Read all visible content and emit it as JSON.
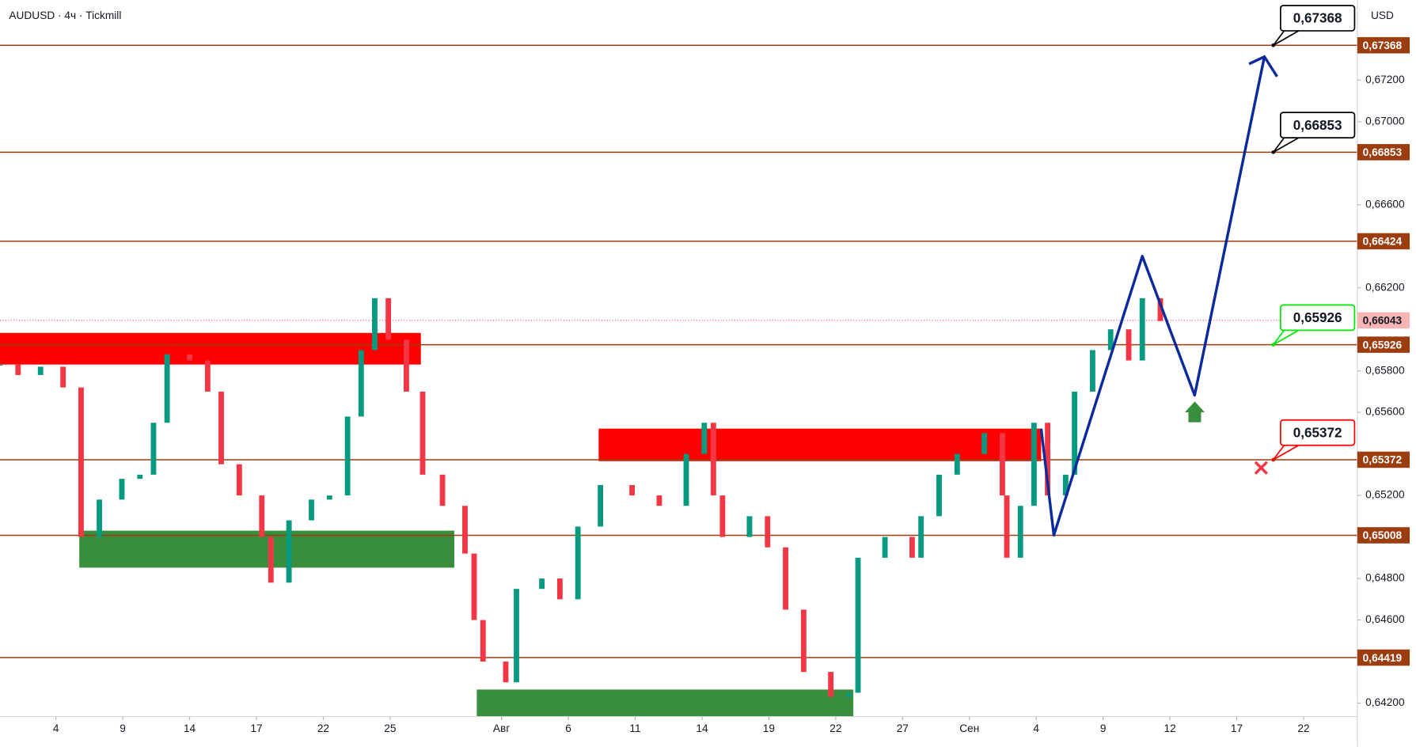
{
  "chart_data": {
    "type": "candlestick",
    "title": "AUDUSD · 4ч · Tickmill",
    "currency": "USD",
    "up_color": "#089981",
    "down_color": "#f23645",
    "level_color": "#9c3d0f",
    "grid": false,
    "x": [
      -2.51,
      -1.7,
      -0.69,
      0.32,
      1.13,
      1.95,
      2.96,
      3.77,
      4.38,
      4.99,
      6.0,
      6.81,
      7.42,
      8.23,
      9.24,
      9.65,
      10.46,
      11.47,
      12.28,
      13.09,
      13.7,
      14.31,
      14.92,
      15.73,
      16.46,
      17.35,
      18.36,
      18.77,
      19.17,
      20.19,
      20.67,
      21.81,
      22.62,
      23.43,
      24.44,
      25.86,
      27.08,
      28.29,
      29.1,
      29.51,
      29.92,
      31.13,
      31.94,
      32.75,
      33.56,
      34.78,
      35.59,
      36.0,
      37.21,
      38.43,
      38.83,
      39.64,
      40.45,
      41.67,
      42.48,
      42.68,
      43.29,
      43.9,
      44.51,
      45.32,
      45.72,
      46.53,
      47.34,
      48.15,
      48.76,
      49.57
    ],
    "close": [
      0.6583,
      0.6578,
      0.6582,
      0.6572,
      0.65,
      0.6518,
      0.6528,
      0.653,
      0.6555,
      0.6588,
      0.6585,
      0.657,
      0.6535,
      0.652,
      0.65,
      0.6478,
      0.6508,
      0.6518,
      0.652,
      0.6558,
      0.659,
      0.6615,
      0.6595,
      0.657,
      0.653,
      0.6515,
      0.6492,
      0.646,
      0.644,
      0.643,
      0.6475,
      0.648,
      0.647,
      0.6505,
      0.6525,
      0.652,
      0.6515,
      0.654,
      0.6555,
      0.652,
      0.65,
      0.651,
      0.6495,
      0.6465,
      0.6435,
      0.6423,
      0.6425,
      0.649,
      0.65,
      0.649,
      0.651,
      0.653,
      0.654,
      0.655,
      0.652,
      0.649,
      0.6515,
      0.6555,
      0.652,
      0.653,
      0.657,
      0.659,
      0.66,
      0.6585,
      0.6615,
      0.6604
    ],
    "xlim": [
      -2.51,
      58.41
    ],
    "xticks": [
      {
        "value": 0,
        "label": "4"
      },
      {
        "value": 3,
        "label": "9"
      },
      {
        "value": 6,
        "label": "14"
      },
      {
        "value": 9,
        "label": "17"
      },
      {
        "value": 12,
        "label": "22"
      },
      {
        "value": 15,
        "label": "25"
      },
      {
        "value": 20,
        "label": "Авг"
      },
      {
        "value": 23,
        "label": "6"
      },
      {
        "value": 26,
        "label": "11"
      },
      {
        "value": 29,
        "label": "14"
      },
      {
        "value": 32,
        "label": "19"
      },
      {
        "value": 35,
        "label": "22"
      },
      {
        "value": 38,
        "label": "27"
      },
      {
        "value": 41,
        "label": "Сен"
      },
      {
        "value": 44,
        "label": "4"
      },
      {
        "value": 47,
        "label": "9"
      },
      {
        "value": 50,
        "label": "12"
      },
      {
        "value": 53,
        "label": "17"
      },
      {
        "value": 56,
        "label": "22"
      }
    ],
    "ylim": [
      0.64135,
      0.67583
    ],
    "yticks": [
      {
        "value": 0.672,
        "label": "0,67200"
      },
      {
        "value": 0.67,
        "label": "0,67000"
      },
      {
        "value": 0.666,
        "label": "0,66600"
      },
      {
        "value": 0.662,
        "label": "0,66200"
      },
      {
        "value": 0.658,
        "label": "0,65800"
      },
      {
        "value": 0.656,
        "label": "0,65600"
      },
      {
        "value": 0.652,
        "label": "0,65200"
      },
      {
        "value": 0.648,
        "label": "0,64800"
      },
      {
        "value": 0.646,
        "label": "0,64600"
      },
      {
        "value": 0.642,
        "label": "0,64200"
      }
    ],
    "levels": [
      {
        "value": 0.67368,
        "label": "0,67368"
      },
      {
        "value": 0.66853,
        "label": "0,66853"
      },
      {
        "value": 0.66424,
        "label": "0,66424"
      },
      {
        "value": 0.65926,
        "label": "0,65926"
      },
      {
        "value": 0.65372,
        "label": "0,65372"
      },
      {
        "value": 0.65008,
        "label": "0,65008"
      },
      {
        "value": 0.64419,
        "label": "0,64419"
      }
    ],
    "current_price": {
      "value": 0.66043,
      "label": "0,66043"
    },
    "callouts": [
      {
        "value": 0.67368,
        "label": "0,67368",
        "color": "#000000"
      },
      {
        "value": 0.66853,
        "label": "0,66853",
        "color": "#000000"
      },
      {
        "value": 0.65926,
        "label": "0,65926",
        "color": "#00e600"
      },
      {
        "value": 0.65372,
        "label": "0,65372",
        "color": "#ff0000"
      }
    ],
    "zones": [
      {
        "x": [
          -2.51,
          16.38
        ],
        "y": [
          0.658304,
          0.659826
        ],
        "color": "#ff0000"
      },
      {
        "x": [
          24.36,
          44.22
        ],
        "y": [
          0.653652,
          0.655217
        ],
        "color": "#ff0000"
      },
      {
        "x": [
          1.05,
          17.88
        ],
        "y": [
          0.648522,
          0.650304
        ],
        "color": "#388e3c"
      },
      {
        "x": [
          18.89,
          35.79
        ],
        "y": [
          0.64135,
          0.642652
        ],
        "color": "#388e3c"
      }
    ],
    "projection": {
      "x": [
        44.22,
        44.79,
        48.76,
        51.11,
        54.24
      ],
      "y": [
        0.655217,
        0.650087,
        0.663522,
        0.656826,
        0.67313
      ],
      "color": "#0d2a9c"
    }
  }
}
